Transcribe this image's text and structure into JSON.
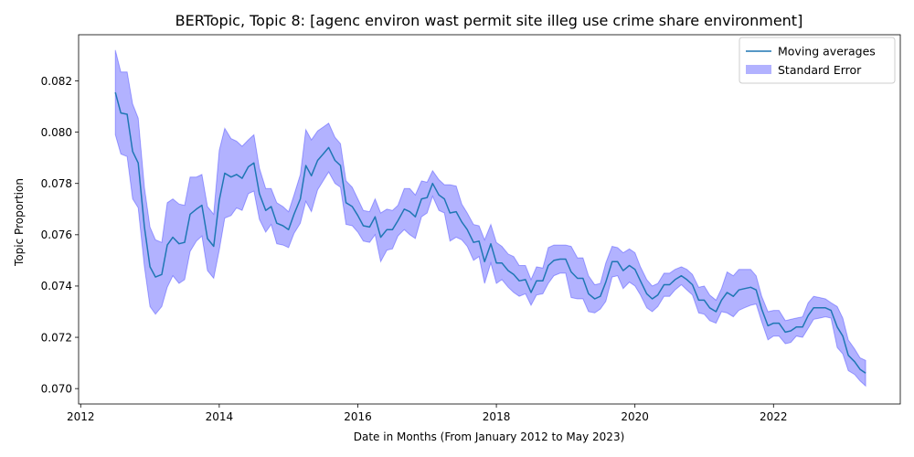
{
  "chart_data": {
    "type": "line",
    "title": "BERTopic, Topic 8: [agenc environ wast permit site illeg use crime share environment]",
    "xlabel": "Date in Months (From January 2012 to May 2023)",
    "ylabel": "Topic Proportion",
    "xlim": [
      2011.97,
      2023.83
    ],
    "ylim": [
      0.0694,
      0.0838
    ],
    "x_ticks": [
      2012,
      2014,
      2016,
      2018,
      2020,
      2022
    ],
    "y_ticks": [
      0.07,
      0.072,
      0.074,
      0.076,
      0.078,
      0.08,
      0.082
    ],
    "x_tick_labels": [
      "2012",
      "2014",
      "2016",
      "2018",
      "2020",
      "2022"
    ],
    "y_tick_labels": [
      "0.070",
      "0.072",
      "0.074",
      "0.076",
      "0.078",
      "0.080",
      "0.082"
    ],
    "grid": false,
    "legend_position": "top-right",
    "series": [
      {
        "name": "Moving averages",
        "kind": "line",
        "color": "#1f77b4",
        "x": [
          2012.5,
          2012.58,
          2012.67,
          2012.75,
          2012.83,
          2012.92,
          2013.0,
          2013.08,
          2013.17,
          2013.25,
          2013.33,
          2013.42,
          2013.5,
          2013.58,
          2013.67,
          2013.75,
          2013.83,
          2013.92,
          2014.0,
          2014.08,
          2014.17,
          2014.25,
          2014.33,
          2014.42,
          2014.5,
          2014.58,
          2014.67,
          2014.75,
          2014.83,
          2014.92,
          2015.0,
          2015.08,
          2015.17,
          2015.25,
          2015.33,
          2015.42,
          2015.5,
          2015.58,
          2015.67,
          2015.75,
          2015.83,
          2015.92,
          2016.0,
          2016.08,
          2016.17,
          2016.25,
          2016.33,
          2016.42,
          2016.5,
          2016.58,
          2016.67,
          2016.75,
          2016.83,
          2016.92,
          2017.0,
          2017.08,
          2017.17,
          2017.25,
          2017.33,
          2017.42,
          2017.5,
          2017.58,
          2017.67,
          2017.75,
          2017.83,
          2017.92,
          2018.0,
          2018.08,
          2018.17,
          2018.25,
          2018.33,
          2018.42,
          2018.5,
          2018.58,
          2018.67,
          2018.75,
          2018.83,
          2018.92,
          2019.0,
          2019.08,
          2019.17,
          2019.25,
          2019.33,
          2019.42,
          2019.5,
          2019.58,
          2019.67,
          2019.75,
          2019.83,
          2019.92,
          2020.0,
          2020.08,
          2020.17,
          2020.25,
          2020.33,
          2020.42,
          2020.5,
          2020.58,
          2020.67,
          2020.75,
          2020.83,
          2020.92,
          2021.0,
          2021.08,
          2021.17,
          2021.25,
          2021.33,
          2021.42,
          2021.5,
          2021.58,
          2021.67,
          2021.75,
          2021.83,
          2021.92,
          2022.0,
          2022.08,
          2022.17,
          2022.25,
          2022.33,
          2022.42,
          2022.5,
          2022.58,
          2022.67,
          2022.75,
          2022.83,
          2022.92,
          2023.0,
          2023.08,
          2023.17,
          2023.25,
          2023.33
        ],
        "y": [
          0.08155,
          0.08075,
          0.0807,
          0.07925,
          0.0788,
          0.0763,
          0.07475,
          0.07435,
          0.07445,
          0.0756,
          0.0759,
          0.07565,
          0.0757,
          0.0768,
          0.077,
          0.07715,
          0.07585,
          0.07555,
          0.07735,
          0.0784,
          0.07825,
          0.07835,
          0.0782,
          0.07865,
          0.0788,
          0.0776,
          0.07695,
          0.0771,
          0.07645,
          0.07635,
          0.0762,
          0.0768,
          0.0774,
          0.0787,
          0.0783,
          0.0789,
          0.07915,
          0.0794,
          0.0789,
          0.0787,
          0.07725,
          0.0771,
          0.07675,
          0.07635,
          0.0763,
          0.0767,
          0.0759,
          0.0762,
          0.0762,
          0.07655,
          0.077,
          0.0769,
          0.0767,
          0.0774,
          0.07745,
          0.078,
          0.07755,
          0.0774,
          0.07685,
          0.0769,
          0.0765,
          0.0762,
          0.0757,
          0.07575,
          0.07495,
          0.07565,
          0.0749,
          0.0749,
          0.0746,
          0.07445,
          0.0742,
          0.07425,
          0.07375,
          0.0742,
          0.0742,
          0.0748,
          0.075,
          0.07505,
          0.07505,
          0.07455,
          0.0743,
          0.0743,
          0.0737,
          0.0735,
          0.0736,
          0.07415,
          0.07495,
          0.07495,
          0.0746,
          0.0748,
          0.07465,
          0.0742,
          0.0737,
          0.0735,
          0.07365,
          0.07405,
          0.07405,
          0.07425,
          0.0744,
          0.07425,
          0.07405,
          0.07345,
          0.07345,
          0.07315,
          0.073,
          0.07345,
          0.07375,
          0.0736,
          0.07385,
          0.0739,
          0.07395,
          0.07385,
          0.0731,
          0.07245,
          0.07255,
          0.07255,
          0.0722,
          0.07225,
          0.0724,
          0.0724,
          0.07285,
          0.07315,
          0.07315,
          0.07315,
          0.07305,
          0.0724,
          0.07205,
          0.0713,
          0.07105,
          0.07075,
          0.0706
        ]
      },
      {
        "name": "Standard Error",
        "kind": "band",
        "color": "#0000ff",
        "alpha": 0.3,
        "halfwidth": [
          0.00165,
          0.0016,
          0.00165,
          0.00185,
          0.00175,
          0.00155,
          0.00155,
          0.00145,
          0.00125,
          0.00165,
          0.0015,
          0.00155,
          0.00145,
          0.00145,
          0.00125,
          0.0012,
          0.00125,
          0.00125,
          0.00195,
          0.00175,
          0.0015,
          0.0013,
          0.00125,
          0.00105,
          0.0011,
          0.001,
          0.00085,
          0.0007,
          0.0008,
          0.00075,
          0.0007,
          0.00075,
          0.00095,
          0.0014,
          0.0014,
          0.00115,
          0.00105,
          0.00095,
          0.0009,
          0.00085,
          0.00085,
          0.00075,
          0.00065,
          0.0006,
          0.0006,
          0.0007,
          0.00095,
          0.0008,
          0.00075,
          0.0006,
          0.0008,
          0.0009,
          0.00085,
          0.0007,
          0.0006,
          0.0005,
          0.0006,
          0.00055,
          0.0011,
          0.001,
          0.0007,
          0.00065,
          0.0007,
          0.0006,
          0.00085,
          0.00075,
          0.0008,
          0.00065,
          0.00065,
          0.0007,
          0.0006,
          0.00055,
          0.0005,
          0.00055,
          0.0005,
          0.0007,
          0.0006,
          0.00055,
          0.00055,
          0.001,
          0.0008,
          0.0008,
          0.0007,
          0.00055,
          0.0005,
          0.00075,
          0.0006,
          0.00055,
          0.0007,
          0.00065,
          0.00065,
          0.00055,
          0.00055,
          0.0005,
          0.00045,
          0.00045,
          0.00045,
          0.0004,
          0.00035,
          0.0004,
          0.0004,
          0.0005,
          0.00055,
          0.0005,
          0.00045,
          0.00045,
          0.0008,
          0.0008,
          0.0008,
          0.00075,
          0.0007,
          0.00055,
          0.0005,
          0.00055,
          0.0005,
          0.0005,
          0.00045,
          0.00045,
          0.00035,
          0.0004,
          0.0005,
          0.00045,
          0.0004,
          0.00035,
          0.0003,
          0.0008,
          0.0007,
          0.0006,
          0.0005,
          0.00045,
          0.0005
        ]
      }
    ]
  }
}
